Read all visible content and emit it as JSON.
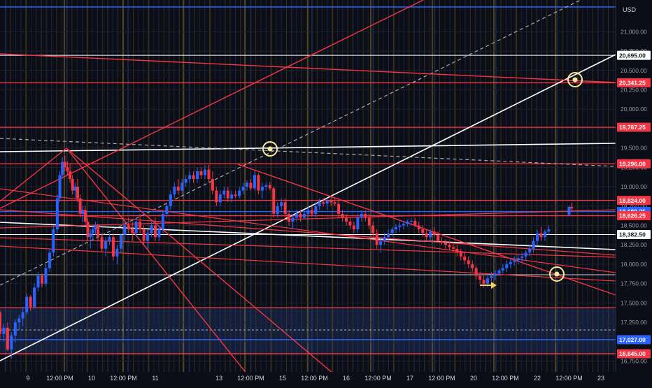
{
  "currency_label": "USD",
  "chart_data": {
    "type": "candlestick",
    "title": "",
    "ylim": [
      16700,
      21300
    ],
    "y_ticks": [
      {
        "value": 21000,
        "label": "21,000.00"
      },
      {
        "value": 20750,
        "label": "20,750.00"
      },
      {
        "value": 20500,
        "label": "20,500.00"
      },
      {
        "value": 20250,
        "label": "20,250.00"
      },
      {
        "value": 20000,
        "label": "20,000.00"
      },
      {
        "value": 19750,
        "label": "19,750.00"
      },
      {
        "value": 19500,
        "label": "19,500.00"
      },
      {
        "value": 19250,
        "label": "19,250.00"
      },
      {
        "value": 19000,
        "label": "19,000.00"
      },
      {
        "value": 18750,
        "label": "18,750.00"
      },
      {
        "value": 18500,
        "label": "18,500.00"
      },
      {
        "value": 18250,
        "label": "18,250.00"
      },
      {
        "value": 18000,
        "label": "18,000.00"
      },
      {
        "value": 17750,
        "label": "17,750.00"
      },
      {
        "value": 17500,
        "label": "17,500.00"
      },
      {
        "value": 17250,
        "label": "17,250.00"
      },
      {
        "value": 17000,
        "label": "17,000.00"
      },
      {
        "value": 16750,
        "label": "16,750.00"
      }
    ],
    "x_ticks": [
      {
        "t": 0.5,
        "label": "9"
      },
      {
        "t": 1.0,
        "label": "12:00 PM"
      },
      {
        "t": 1.5,
        "label": "10"
      },
      {
        "t": 2.0,
        "label": "12:00 PM"
      },
      {
        "t": 2.5,
        "label": "11"
      },
      {
        "t": 3.5,
        "label": "13"
      },
      {
        "t": 4.0,
        "label": "12:00 PM"
      },
      {
        "t": 4.5,
        "label": "15"
      },
      {
        "t": 5.0,
        "label": "12:00 PM"
      },
      {
        "t": 5.5,
        "label": "16"
      },
      {
        "t": 6.0,
        "label": "12:00 PM"
      },
      {
        "t": 6.5,
        "label": "17"
      },
      {
        "t": 7.0,
        "label": "12:00 PM"
      },
      {
        "t": 7.5,
        "label": "20"
      },
      {
        "t": 8.0,
        "label": "12:00 PM"
      },
      {
        "t": 8.5,
        "label": "22"
      },
      {
        "t": 9.0,
        "label": "12:00 PM"
      },
      {
        "t": 9.5,
        "label": "23"
      }
    ],
    "price_levels": [
      {
        "value": 21319,
        "label": "",
        "color": "#2962ff"
      },
      {
        "value": 20695,
        "label": "20,695.00",
        "color": "#ffffff"
      },
      {
        "value": 20341.25,
        "label": "20,341.25",
        "color": "#f23645"
      },
      {
        "value": 19767.25,
        "label": "19,767.25",
        "color": "#f23645"
      },
      {
        "value": 19296,
        "label": "19,296.00",
        "color": "#f23645"
      },
      {
        "value": 18824,
        "label": "18,824.00",
        "color": "#f23645"
      },
      {
        "value": 18680.25,
        "label": "18,680.25",
        "color": "#2962ff"
      },
      {
        "value": 18626.25,
        "label": "18,626.25",
        "color": "#f23645"
      },
      {
        "value": 18382.5,
        "label": "18,382.50",
        "color": "#ffffff"
      },
      {
        "value": 17027,
        "label": "17,027.00",
        "color": "#2962ff"
      },
      {
        "value": 16845,
        "label": "16,845.00",
        "color": "#f23645"
      }
    ],
    "candles": [
      [
        0.0,
        17500,
        17650,
        17350,
        17380
      ],
      [
        0.06,
        17380,
        17410,
        17020,
        17100
      ],
      [
        0.12,
        17100,
        17230,
        17000,
        17180
      ],
      [
        0.18,
        17180,
        17250,
        16880,
        16900
      ],
      [
        0.24,
        16900,
        17120,
        16780,
        17080
      ],
      [
        0.3,
        17080,
        17290,
        16990,
        17250
      ],
      [
        0.36,
        17250,
        17350,
        17150,
        17300
      ],
      [
        0.42,
        17300,
        17450,
        17200,
        17380
      ],
      [
        0.48,
        17380,
        17620,
        17350,
        17580
      ],
      [
        0.54,
        17580,
        17600,
        17400,
        17450
      ],
      [
        0.6,
        17450,
        17750,
        17420,
        17700
      ],
      [
        0.66,
        17700,
        17900,
        17650,
        17850
      ],
      [
        0.72,
        17850,
        17880,
        17700,
        17750
      ],
      [
        0.78,
        17750,
        18000,
        17720,
        17950
      ],
      [
        0.84,
        17950,
        18200,
        17900,
        18150
      ],
      [
        0.9,
        18150,
        18500,
        18100,
        18450
      ],
      [
        0.96,
        18450,
        18900,
        18400,
        18850
      ],
      [
        1.0,
        18850,
        19200,
        18800,
        19150
      ],
      [
        1.04,
        19150,
        19380,
        19100,
        19320
      ],
      [
        1.08,
        19320,
        19400,
        19200,
        19250
      ],
      [
        1.12,
        19250,
        19330,
        19150,
        19200
      ],
      [
        1.16,
        19200,
        19300,
        19050,
        19100
      ],
      [
        1.2,
        19100,
        19150,
        18900,
        18950
      ],
      [
        1.24,
        18950,
        19050,
        18850,
        19000
      ],
      [
        1.28,
        19000,
        19100,
        18800,
        18850
      ],
      [
        1.32,
        18850,
        18900,
        18600,
        18650
      ],
      [
        1.36,
        18650,
        18750,
        18550,
        18700
      ],
      [
        1.4,
        18700,
        18750,
        18500,
        18550
      ],
      [
        1.44,
        18550,
        18600,
        18300,
        18350
      ],
      [
        1.48,
        18350,
        18450,
        18200,
        18400
      ],
      [
        1.52,
        18400,
        18500,
        18300,
        18450
      ],
      [
        1.56,
        18450,
        18550,
        18380,
        18500
      ],
      [
        1.6,
        18500,
        18520,
        18300,
        18350
      ],
      [
        1.66,
        18350,
        18400,
        18150,
        18200
      ],
      [
        1.72,
        18200,
        18350,
        18100,
        18300
      ],
      [
        1.78,
        18300,
        18400,
        18250,
        18350
      ],
      [
        1.84,
        18350,
        18400,
        18050,
        18100
      ],
      [
        1.9,
        18100,
        18250,
        18000,
        18200
      ],
      [
        1.96,
        18200,
        18400,
        18150,
        18380
      ],
      [
        2.02,
        18380,
        18550,
        18300,
        18500
      ],
      [
        2.08,
        18500,
        18600,
        18400,
        18450
      ],
      [
        2.14,
        18450,
        18550,
        18300,
        18400
      ],
      [
        2.2,
        18400,
        18600,
        18350,
        18550
      ],
      [
        2.26,
        18550,
        18650,
        18400,
        18450
      ],
      [
        2.32,
        18450,
        18500,
        18250,
        18300
      ],
      [
        2.38,
        18300,
        18450,
        18200,
        18400
      ],
      [
        2.44,
        18400,
        18550,
        18350,
        18500
      ],
      [
        2.5,
        18500,
        18600,
        18300,
        18350
      ],
      [
        2.56,
        18350,
        18500,
        18300,
        18450
      ],
      [
        2.62,
        18450,
        18700,
        18400,
        18650
      ],
      [
        2.68,
        18650,
        18800,
        18600,
        18750
      ],
      [
        2.74,
        18750,
        18950,
        18700,
        18900
      ],
      [
        2.8,
        18900,
        19050,
        18850,
        19000
      ],
      [
        2.86,
        19000,
        19100,
        18900,
        18950
      ],
      [
        2.92,
        18950,
        19100,
        18900,
        19050
      ],
      [
        2.98,
        19050,
        19150,
        19000,
        19100
      ],
      [
        3.04,
        19100,
        19200,
        19050,
        19150
      ],
      [
        3.1,
        19150,
        19200,
        19050,
        19100
      ],
      [
        3.16,
        19100,
        19250,
        19050,
        19200
      ],
      [
        3.22,
        19200,
        19250,
        19100,
        19150
      ],
      [
        3.28,
        19150,
        19280,
        19100,
        19220
      ],
      [
        3.34,
        19220,
        19280,
        19050,
        19100
      ],
      [
        3.4,
        19100,
        19200,
        18900,
        18950
      ],
      [
        3.46,
        18950,
        19000,
        18750,
        18800
      ],
      [
        3.52,
        18800,
        18950,
        18750,
        18900
      ],
      [
        3.58,
        18900,
        19000,
        18850,
        18950
      ],
      [
        3.64,
        18950,
        19000,
        18800,
        18850
      ],
      [
        3.7,
        18850,
        18950,
        18800,
        18900
      ],
      [
        3.76,
        18900,
        18950,
        18850,
        18880
      ],
      [
        3.82,
        18880,
        19000,
        18850,
        18950
      ],
      [
        3.88,
        18950,
        19050,
        18900,
        19000
      ],
      [
        3.94,
        19000,
        19080,
        18950,
        19050
      ],
      [
        4.0,
        19050,
        19100,
        18950,
        18980
      ],
      [
        4.06,
        18980,
        19200,
        18950,
        19150
      ],
      [
        4.12,
        19150,
        19180,
        18900,
        18950
      ],
      [
        4.18,
        18950,
        19050,
        18850,
        19000
      ],
      [
        4.24,
        19000,
        19050,
        18950,
        19020
      ],
      [
        4.3,
        19020,
        19060,
        18950,
        18980
      ],
      [
        4.36,
        18980,
        19000,
        18600,
        18650
      ],
      [
        4.42,
        18650,
        18800,
        18600,
        18750
      ],
      [
        4.48,
        18750,
        18850,
        18700,
        18800
      ],
      [
        4.54,
        18800,
        18850,
        18600,
        18650
      ],
      [
        4.6,
        18650,
        18700,
        18500,
        18550
      ],
      [
        4.66,
        18550,
        18650,
        18450,
        18600
      ],
      [
        4.72,
        18600,
        18700,
        18550,
        18650
      ],
      [
        4.78,
        18650,
        18700,
        18550,
        18600
      ],
      [
        4.84,
        18600,
        18700,
        18580,
        18650
      ],
      [
        4.9,
        18650,
        18750,
        18600,
        18700
      ],
      [
        4.96,
        18700,
        18750,
        18620,
        18650
      ],
      [
        5.02,
        18650,
        18800,
        18600,
        18750
      ],
      [
        5.08,
        18750,
        18850,
        18700,
        18800
      ],
      [
        5.14,
        18800,
        18850,
        18750,
        18780
      ],
      [
        5.2,
        18780,
        18850,
        18700,
        18820
      ],
      [
        5.26,
        18820,
        18880,
        18750,
        18800
      ],
      [
        5.32,
        18800,
        18850,
        18750,
        18780
      ],
      [
        5.38,
        18780,
        18820,
        18600,
        18650
      ],
      [
        5.44,
        18650,
        18700,
        18550,
        18600
      ],
      [
        5.5,
        18600,
        18650,
        18500,
        18550
      ],
      [
        5.56,
        18550,
        18600,
        18450,
        18500
      ],
      [
        5.62,
        18500,
        18550,
        18400,
        18450
      ],
      [
        5.68,
        18450,
        18650,
        18400,
        18600
      ],
      [
        5.74,
        18600,
        18700,
        18550,
        18650
      ],
      [
        5.8,
        18650,
        18700,
        18550,
        18600
      ],
      [
        5.86,
        18600,
        18650,
        18450,
        18500
      ],
      [
        5.92,
        18500,
        18550,
        18350,
        18400
      ],
      [
        5.98,
        18400,
        18450,
        18200,
        18250
      ],
      [
        6.04,
        18250,
        18350,
        18150,
        18300
      ],
      [
        6.1,
        18300,
        18400,
        18250,
        18350
      ],
      [
        6.16,
        18350,
        18450,
        18300,
        18400
      ],
      [
        6.22,
        18400,
        18480,
        18350,
        18450
      ],
      [
        6.28,
        18450,
        18520,
        18400,
        18480
      ],
      [
        6.34,
        18480,
        18550,
        18420,
        18500
      ],
      [
        6.4,
        18500,
        18560,
        18450,
        18520
      ],
      [
        6.46,
        18520,
        18580,
        18480,
        18550
      ],
      [
        6.52,
        18550,
        18600,
        18500,
        18560
      ],
      [
        6.58,
        18560,
        18600,
        18480,
        18500
      ],
      [
        6.64,
        18500,
        18550,
        18400,
        18450
      ],
      [
        6.7,
        18450,
        18500,
        18350,
        18400
      ],
      [
        6.76,
        18400,
        18450,
        18300,
        18350
      ],
      [
        6.82,
        18350,
        18450,
        18300,
        18420
      ],
      [
        6.88,
        18420,
        18480,
        18350,
        18380
      ],
      [
        6.94,
        18380,
        18420,
        18280,
        18300
      ],
      [
        7.0,
        18300,
        18350,
        18250,
        18280
      ],
      [
        7.06,
        18280,
        18320,
        18200,
        18250
      ],
      [
        7.12,
        18250,
        18300,
        18180,
        18220
      ],
      [
        7.18,
        18220,
        18280,
        18150,
        18200
      ],
      [
        7.24,
        18200,
        18250,
        18100,
        18150
      ],
      [
        7.3,
        18150,
        18200,
        18050,
        18100
      ],
      [
        7.36,
        18100,
        18150,
        18000,
        18050
      ],
      [
        7.42,
        18050,
        18100,
        17950,
        18000
      ],
      [
        7.48,
        18000,
        18050,
        17900,
        17950
      ],
      [
        7.54,
        17950,
        17980,
        17800,
        17850
      ],
      [
        7.6,
        17850,
        17900,
        17750,
        17800
      ],
      [
        7.66,
        17800,
        17850,
        17700,
        17750
      ],
      [
        7.72,
        17750,
        17850,
        17700,
        17820
      ],
      [
        7.78,
        17820,
        17900,
        17780,
        17850
      ],
      [
        7.84,
        17850,
        17920,
        17800,
        17880
      ],
      [
        7.9,
        17880,
        17950,
        17850,
        17920
      ],
      [
        7.96,
        17920,
        18000,
        17880,
        17950
      ],
      [
        8.02,
        17950,
        18050,
        17900,
        18000
      ],
      [
        8.08,
        18000,
        18080,
        17950,
        18030
      ],
      [
        8.14,
        18030,
        18100,
        17980,
        18050
      ],
      [
        8.2,
        18050,
        18120,
        18000,
        18080
      ],
      [
        8.26,
        18080,
        18150,
        18030,
        18100
      ],
      [
        8.32,
        18100,
        18180,
        18050,
        18150
      ],
      [
        8.38,
        18150,
        18250,
        18100,
        18200
      ],
      [
        8.44,
        18200,
        18350,
        18150,
        18300
      ],
      [
        8.5,
        18300,
        18450,
        18250,
        18400
      ],
      [
        8.56,
        18400,
        18480,
        18300,
        18350
      ],
      [
        8.62,
        18350,
        18450,
        18300,
        18420
      ],
      [
        8.68,
        18420,
        18500,
        18380,
        18450
      ],
      [
        9.0,
        18640,
        18760,
        18620,
        18740
      ],
      [
        9.04,
        18740,
        18790,
        18680,
        18720
      ]
    ]
  }
}
